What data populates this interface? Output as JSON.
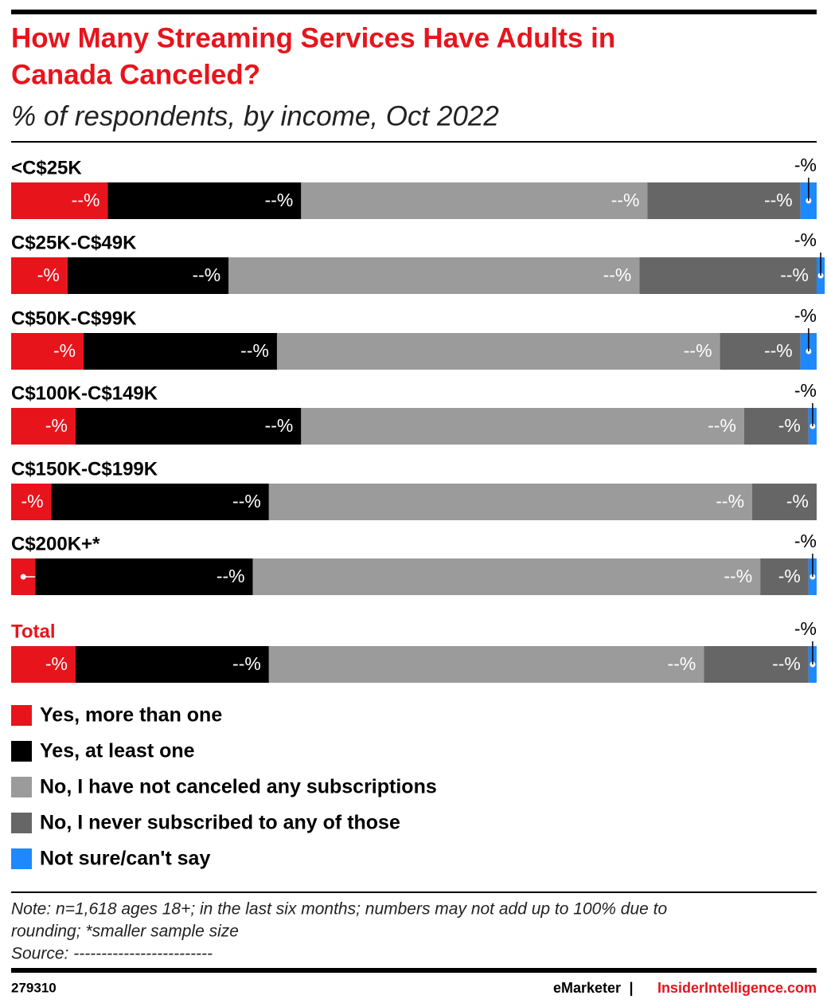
{
  "chart_data": {
    "type": "stacked-bar",
    "title": [
      "How Many Streaming Services Have Adults in",
      "Canada Canceled?"
    ],
    "subtitle": "% of respondents, by income, Oct 2022",
    "categories": [
      "<C$25K",
      "C$25K-C$49K",
      "C$50K-C$99K",
      "C$100K-C$149K",
      "C$150K-C$199K",
      "C$200K+*",
      "Total"
    ],
    "xlim": [
      0,
      100
    ],
    "series": [
      {
        "name": "Yes, more than one",
        "color": "#e8141c",
        "values": [
          12,
          7,
          9,
          8,
          5,
          3,
          8
        ],
        "value_labels": [
          "--%",
          "-%",
          "-%",
          "-%",
          "-%",
          "-%",
          "-%"
        ]
      },
      {
        "name": "Yes, at least one",
        "color": "#000000",
        "values": [
          24,
          20,
          24,
          28,
          27,
          27,
          24
        ],
        "value_labels": [
          "--%",
          "--%",
          "--%",
          "--%",
          "--%",
          "--%",
          "--%"
        ]
      },
      {
        "name": "No, I have not canceled any subscriptions",
        "color": "#9b9b9b",
        "values": [
          43,
          51,
          55,
          55,
          60,
          63,
          54
        ],
        "value_labels": [
          "--%",
          "--%",
          "--%",
          "--%",
          "--%",
          "--%",
          "--%"
        ]
      },
      {
        "name": "No, I never subscribed to any of those",
        "color": "#666666",
        "values": [
          19,
          22,
          10,
          8,
          8,
          6,
          13
        ],
        "value_labels": [
          "--%",
          "--%",
          "--%",
          "-%",
          "-%",
          "-%",
          "--%"
        ]
      },
      {
        "name": "Not sure/can't say",
        "color": "#1e88ff",
        "values": [
          2,
          1,
          2,
          1,
          0,
          1,
          1
        ],
        "value_labels": [
          "-%",
          "-%",
          "-%",
          "-%",
          null,
          "-%",
          "-%"
        ]
      }
    ],
    "note": [
      "Note: n=1,618 ages 18+; in the last six months; numbers may not add up to 100% due to",
      "rounding; *smaller sample size"
    ],
    "source": "Source: -------------------------",
    "chart_id": "279310",
    "brand": "eMarketer",
    "separator": "|",
    "site": "InsiderIntelligence.com"
  }
}
